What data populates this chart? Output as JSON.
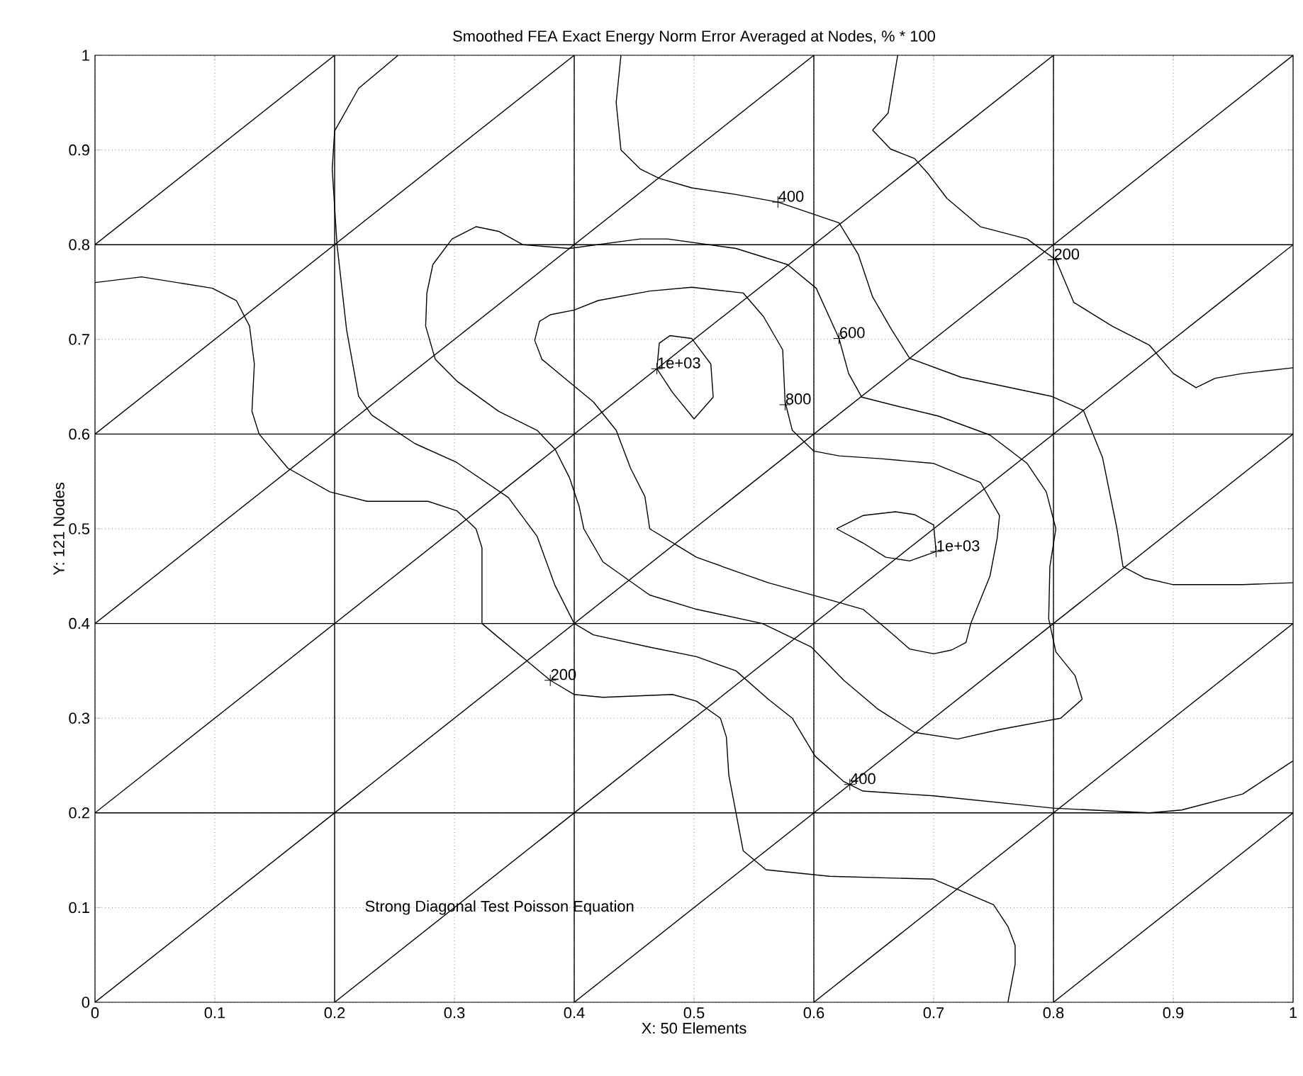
{
  "chart_data": {
    "type": "line",
    "title": "Smoothed FEA Exact Energy Norm Error Averaged at Nodes, % * 100",
    "xlabel": "X: 50 Elements",
    "ylabel": "Y: 121 Nodes",
    "xlim": [
      0,
      1
    ],
    "ylim": [
      0,
      1
    ],
    "xticks": [
      0,
      0.1,
      0.2,
      0.3,
      0.4,
      0.5,
      0.6,
      0.7,
      0.8,
      0.9,
      1
    ],
    "yticks": [
      0,
      0.1,
      0.2,
      0.3,
      0.4,
      0.5,
      0.6,
      0.7,
      0.8,
      0.9,
      1
    ],
    "grid": true,
    "series": [
      {
        "color": "#000000",
        "x": [
          0,
          1
        ],
        "values": [
          0.2,
          0.2
        ]
      },
      {
        "color": "#000000",
        "x": [
          0,
          1
        ],
        "values": [
          0.4,
          0.4
        ]
      },
      {
        "color": "#000000",
        "x": [
          0,
          1
        ],
        "values": [
          0.6,
          0.6
        ]
      },
      {
        "color": "#000000",
        "x": [
          0,
          1
        ],
        "values": [
          0.8,
          0.8
        ]
      },
      {
        "color": "#000000",
        "x": [
          0.2,
          0.2
        ],
        "values": [
          0,
          1
        ]
      },
      {
        "color": "#000000",
        "x": [
          0.4,
          0.4
        ],
        "values": [
          0,
          1
        ]
      },
      {
        "color": "#000000",
        "x": [
          0.6,
          0.6
        ],
        "values": [
          0,
          1
        ]
      },
      {
        "color": "#000000",
        "x": [
          0.8,
          0.8
        ],
        "values": [
          0,
          1
        ]
      },
      {
        "color": "#000000",
        "x": [
          0.8,
          1
        ],
        "values": [
          0,
          0.2
        ]
      },
      {
        "color": "#000000",
        "x": [
          0.6,
          1
        ],
        "values": [
          0,
          0.4
        ]
      },
      {
        "color": "#000000",
        "x": [
          0.4,
          1
        ],
        "values": [
          0,
          0.6
        ]
      },
      {
        "color": "#000000",
        "x": [
          0.2,
          1
        ],
        "values": [
          0,
          0.8
        ]
      },
      {
        "color": "#000000",
        "x": [
          0,
          1
        ],
        "values": [
          0,
          1
        ]
      },
      {
        "color": "#000000",
        "x": [
          0,
          0.8
        ],
        "values": [
          0.2,
          1
        ]
      },
      {
        "color": "#000000",
        "x": [
          0,
          0.6
        ],
        "values": [
          0.4,
          1
        ]
      },
      {
        "color": "#000000",
        "x": [
          0,
          0.4
        ],
        "values": [
          0.6,
          1
        ]
      },
      {
        "color": "#000000",
        "x": [
          0,
          0.2
        ],
        "values": [
          0.8,
          1
        ]
      },
      {
        "color": "#000000",
        "x": [
          0,
          0.039,
          0.098,
          0.118,
          0.129,
          0.133,
          0.131,
          0.137,
          0.161,
          0.196,
          0.227,
          0.278,
          0.302,
          0.318,
          0.323,
          0.323,
          0.337,
          0.361,
          0.38,
          0.4,
          0.424,
          0.482,
          0.502,
          0.522,
          0.527,
          0.529,
          0.535,
          0.541,
          0.56,
          0.613,
          0.7,
          0.75,
          0.762,
          0.768,
          0.768,
          0.762
        ],
        "values": [
          0.76,
          0.766,
          0.754,
          0.741,
          0.714,
          0.674,
          0.624,
          0.6,
          0.564,
          0.539,
          0.529,
          0.529,
          0.519,
          0.5,
          0.48,
          0.4,
          0.385,
          0.36,
          0.34,
          0.325,
          0.322,
          0.325,
          0.318,
          0.3,
          0.28,
          0.24,
          0.2,
          0.16,
          0.14,
          0.133,
          0.13,
          0.103,
          0.08,
          0.06,
          0.04,
          0
        ]
      },
      {
        "color": "#000000",
        "x": [
          0.253,
          0.22,
          0.2,
          0.198,
          0.202,
          0.21,
          0.22,
          0.231,
          0.267,
          0.302,
          0.345,
          0.369,
          0.384,
          0.4,
          0.416,
          0.463,
          0.502,
          0.535,
          0.562,
          0.582,
          0.601,
          0.625,
          0.641,
          0.7,
          0.8,
          0.88,
          0.907,
          0.958,
          1
        ],
        "values": [
          1,
          0.965,
          0.92,
          0.88,
          0.8,
          0.71,
          0.64,
          0.62,
          0.59,
          0.57,
          0.533,
          0.492,
          0.44,
          0.4,
          0.388,
          0.375,
          0.365,
          0.35,
          0.32,
          0.3,
          0.26,
          0.233,
          0.223,
          0.218,
          0.205,
          0.2,
          0.203,
          0.22,
          0.255
        ]
      },
      {
        "color": "#000000",
        "x": [
          0.439,
          0.435,
          0.439,
          0.455,
          0.471,
          0.498,
          0.535,
          0.57,
          0.621,
          0.637,
          0.649,
          0.665,
          0.68,
          0.723,
          0.798,
          0.825,
          0.841,
          0.853,
          0.858,
          0.876,
          0.9,
          0.958,
          1
        ],
        "values": [
          1,
          0.95,
          0.9,
          0.88,
          0.87,
          0.86,
          0.853,
          0.845,
          0.823,
          0.79,
          0.745,
          0.71,
          0.68,
          0.66,
          0.64,
          0.625,
          0.575,
          0.5,
          0.46,
          0.448,
          0.441,
          0.441,
          0.443
        ]
      },
      {
        "color": "#000000",
        "x": [
          0.298,
          0.318,
          0.337,
          0.357,
          0.396,
          0.455,
          0.478,
          0.535,
          0.578,
          0.602,
          0.621,
          0.629,
          0.64,
          0.665,
          0.704,
          0.747,
          0.778,
          0.794,
          0.802,
          null,
          0.796,
          0.797,
          0.802,
          null,
          0.796,
          0.802,
          0.818,
          0.824,
          null,
          0.276,
          0.284,
          0.302,
          0.337,
          0.369,
          0.384,
          0.396,
          0.404,
          0.408,
          0.424,
          0.463,
          0.502,
          0.557,
          0.598,
          0.625,
          0.653,
          0.684,
          0.72,
          0.755,
          0.806,
          0.824,
          null,
          0.276,
          0.277,
          0.282,
          0.298
        ],
        "values": [
          0.806,
          0.819,
          0.814,
          0.8,
          0.796,
          0.806,
          0.806,
          0.796,
          0.779,
          0.754,
          0.701,
          0.664,
          0.639,
          0.631,
          0.619,
          0.599,
          0.569,
          0.539,
          0.5,
          null,
          0.405,
          0.46,
          0.5,
          null,
          0.405,
          0.37,
          0.345,
          0.32,
          null,
          0.714,
          0.679,
          0.656,
          0.624,
          0.604,
          0.584,
          0.554,
          0.524,
          0.5,
          0.465,
          0.43,
          0.415,
          0.4,
          0.375,
          0.34,
          0.31,
          0.285,
          0.278,
          0.288,
          0.3,
          0.32,
          null,
          0.714,
          0.749,
          0.779,
          0.806
        ]
      },
      {
        "color": "#000000",
        "x": [
          0.38,
          0.4,
          0.42,
          0.463,
          0.498,
          0.541,
          0.558,
          0.574,
          0.576,
          0.582,
          0.6,
          0.621,
          0.656,
          0.7,
          0.739,
          0.755,
          null,
          0.367,
          0.373,
          0.392,
          0.416,
          0.435,
          0.447,
          0.459,
          0.463,
          0.502,
          0.535,
          0.562,
          0.613,
          0.641,
          0.66,
          0.68,
          0.7,
          0.715,
          0.727,
          0.731,
          0.747,
          0.753,
          0.755,
          null,
          0.367,
          0.371,
          0.38
        ],
        "values": [
          0.726,
          0.731,
          0.741,
          0.751,
          0.755,
          0.749,
          0.724,
          0.689,
          0.634,
          0.604,
          0.582,
          0.577,
          0.574,
          0.569,
          0.549,
          0.514,
          null,
          0.699,
          0.679,
          0.659,
          0.634,
          0.604,
          0.564,
          0.534,
          0.5,
          0.47,
          0.455,
          0.443,
          0.425,
          0.415,
          0.395,
          0.373,
          0.368,
          0.372,
          0.38,
          0.4,
          0.45,
          0.49,
          0.514,
          null,
          0.699,
          0.719,
          0.726
        ]
      },
      {
        "color": "#000000",
        "x": [
          0.469,
          0.471,
          0.48,
          0.498,
          0.514,
          0.516
        ],
        "values": [
          0.669,
          0.696,
          0.704,
          0.701,
          0.674,
          0.639
        ]
      },
      {
        "color": "#000000",
        "x": [
          0.469,
          0.482,
          0.5,
          0.516
        ],
        "values": [
          0.669,
          0.644,
          0.616,
          0.639
        ]
      },
      {
        "color": "#000000",
        "x": [
          0.619,
          0.641,
          0.668,
          0.684,
          0.7,
          0.702
        ],
        "values": [
          0.5,
          0.514,
          0.518,
          0.515,
          0.504,
          0.476
        ]
      },
      {
        "color": "#000000",
        "x": [
          0.619,
          0.641,
          0.66,
          0.68,
          0.702
        ],
        "values": [
          0.5,
          0.485,
          0.47,
          0.466,
          0.476
        ]
      },
      {
        "color": "#000000",
        "x": [
          0.649,
          0.662,
          0.67
        ],
        "values": [
          0.921,
          0.939,
          1
        ]
      },
      {
        "color": "#000000",
        "x": [
          0.649,
          0.664,
          0.684,
          0.696,
          0.711,
          0.739,
          0.778,
          0.802,
          0.817,
          0.849,
          0.88,
          0.9,
          0.919,
          0.935,
          0.958,
          1
        ],
        "values": [
          0.921,
          0.901,
          0.891,
          0.874,
          0.849,
          0.819,
          0.806,
          0.784,
          0.739,
          0.714,
          0.694,
          0.664,
          0.649,
          0.659,
          0.664,
          0.67
        ]
      }
    ],
    "annotations": [
      {
        "text": "400",
        "x": 0.57,
        "y": 0.845
      },
      {
        "text": "200",
        "x": 0.8,
        "y": 0.784
      },
      {
        "text": "1e+03",
        "x": 0.469,
        "y": 0.669
      },
      {
        "text": "600",
        "x": 0.621,
        "y": 0.701
      },
      {
        "text": "800",
        "x": 0.576,
        "y": 0.631
      },
      {
        "text": "1e+03",
        "x": 0.702,
        "y": 0.476
      },
      {
        "text": "200",
        "x": 0.38,
        "y": 0.34
      },
      {
        "text": "400",
        "x": 0.63,
        "y": 0.23
      },
      "Strong Diagonal Test Poisson Equation"
    ]
  }
}
